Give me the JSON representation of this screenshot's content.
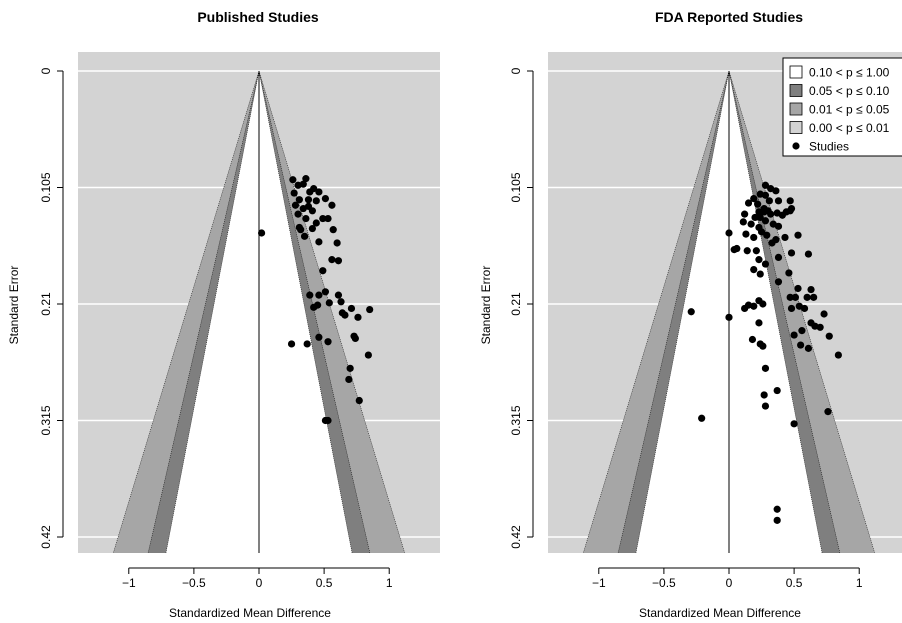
{
  "colors": {
    "panel_background": "#d3d3d3",
    "grid": "#ffffff",
    "region_p_010_100": "#ffffff",
    "region_p_005_010": "#7f7f7f",
    "region_p_001_005": "#a6a6a6",
    "region_p_000_001": "#d3d3d3",
    "points": "#000000"
  },
  "legend": {
    "items": [
      {
        "label": "0.10 < p ≤ 1.00",
        "kind": "box",
        "color": "#ffffff"
      },
      {
        "label": "0.05 < p ≤ 0.10",
        "kind": "box",
        "color": "#7f7f7f"
      },
      {
        "label": "0.01 < p ≤ 0.05",
        "kind": "box",
        "color": "#a6a6a6"
      },
      {
        "label": "0.00 < p ≤ 0.01",
        "kind": "box",
        "color": "#d3d3d3"
      },
      {
        "label": "Studies",
        "kind": "point",
        "color": "#000000"
      }
    ]
  },
  "chart_data": [
    {
      "type": "scatter",
      "subtype": "contour-enhanced funnel plot",
      "title": "Published Studies",
      "xlabel": "Standardized Mean Difference",
      "ylabel": "Standard Error",
      "xlim": [
        -1.39,
        1.39
      ],
      "ylim": [
        0.42,
        0
      ],
      "y_reversed": true,
      "grid": "horizontal",
      "x_ticks": [
        -1,
        -0.5,
        0,
        0.5,
        1
      ],
      "x_tick_labels": [
        "−1",
        "−0.5",
        "0",
        "0.5",
        "1"
      ],
      "y_ticks": [
        0,
        0.105,
        0.21,
        0.315,
        0.42
      ],
      "y_tick_labels": [
        "0",
        "0.105",
        "0.21",
        "0.315",
        "0.42"
      ],
      "reference_line_x": 0,
      "contour_multipliers": [
        1.645,
        1.96,
        2.576
      ],
      "legend_shown": false,
      "points": [
        [
          0.26,
          0.098
        ],
        [
          0.36,
          0.097
        ],
        [
          0.3,
          0.103
        ],
        [
          0.34,
          0.102
        ],
        [
          0.27,
          0.11
        ],
        [
          0.39,
          0.109
        ],
        [
          0.42,
          0.106
        ],
        [
          0.46,
          0.109
        ],
        [
          0.31,
          0.116
        ],
        [
          0.38,
          0.116
        ],
        [
          0.44,
          0.117
        ],
        [
          0.51,
          0.115
        ],
        [
          0.56,
          0.121
        ],
        [
          0.28,
          0.121
        ],
        [
          0.34,
          0.124
        ],
        [
          0.41,
          0.126
        ],
        [
          0.38,
          0.122
        ],
        [
          0.3,
          0.129
        ],
        [
          0.36,
          0.133
        ],
        [
          0.49,
          0.133
        ],
        [
          0.53,
          0.133
        ],
        [
          0.44,
          0.137
        ],
        [
          0.31,
          0.141
        ],
        [
          0.41,
          0.142
        ],
        [
          0.32,
          0.143
        ],
        [
          0.57,
          0.143
        ],
        [
          0.35,
          0.149
        ],
        [
          0.46,
          0.154
        ],
        [
          0.6,
          0.155
        ],
        [
          0.49,
          0.18
        ],
        [
          0.56,
          0.17
        ],
        [
          0.61,
          0.171
        ],
        [
          0.39,
          0.202
        ],
        [
          0.46,
          0.202
        ],
        [
          0.51,
          0.199
        ],
        [
          0.61,
          0.202
        ],
        [
          0.45,
          0.211
        ],
        [
          0.54,
          0.209
        ],
        [
          0.63,
          0.208
        ],
        [
          0.42,
          0.213
        ],
        [
          0.71,
          0.214
        ],
        [
          0.64,
          0.218
        ],
        [
          0.66,
          0.22
        ],
        [
          0.76,
          0.222
        ],
        [
          0.85,
          0.215
        ],
        [
          0.46,
          0.24
        ],
        [
          0.53,
          0.244
        ],
        [
          0.73,
          0.239
        ],
        [
          0.74,
          0.241
        ],
        [
          0.25,
          0.246
        ],
        [
          0.37,
          0.246
        ],
        [
          0.84,
          0.256
        ],
        [
          0.7,
          0.268
        ],
        [
          0.69,
          0.278
        ],
        [
          0.77,
          0.297
        ],
        [
          0.51,
          0.315
        ],
        [
          0.53,
          0.315
        ],
        [
          0.02,
          0.146
        ]
      ]
    },
    {
      "type": "scatter",
      "subtype": "contour-enhanced funnel plot",
      "title": "FDA Reported Studies",
      "xlabel": "Standardized Mean Difference",
      "ylabel": "Standard Error",
      "xlim": [
        -1.39,
        1.39
      ],
      "ylim": [
        0.42,
        0
      ],
      "y_reversed": true,
      "grid": "horizontal",
      "x_ticks": [
        -1,
        -0.5,
        0,
        0.5,
        1
      ],
      "x_tick_labels": [
        "−1",
        "−0.5",
        "0",
        "0.5",
        "1"
      ],
      "y_ticks": [
        0,
        0.105,
        0.21,
        0.315,
        0.42
      ],
      "y_tick_labels": [
        "0",
        "0.105",
        "0.21",
        "0.315",
        "0.42"
      ],
      "reference_line_x": 0,
      "contour_multipliers": [
        1.645,
        1.96,
        2.576
      ],
      "legend_shown": true,
      "legend_position": "top-right",
      "points": [
        [
          0.28,
          0.103
        ],
        [
          0.32,
          0.106
        ],
        [
          0.36,
          0.108
        ],
        [
          0.24,
          0.111
        ],
        [
          0.28,
          0.112
        ],
        [
          0.19,
          0.115
        ],
        [
          0.31,
          0.117
        ],
        [
          0.38,
          0.117
        ],
        [
          0.47,
          0.117
        ],
        [
          0.15,
          0.119
        ],
        [
          0.22,
          0.12
        ],
        [
          0.27,
          0.124
        ],
        [
          0.3,
          0.126
        ],
        [
          0.23,
          0.127
        ],
        [
          0.27,
          0.127
        ],
        [
          0.32,
          0.129
        ],
        [
          0.41,
          0.13
        ],
        [
          0.48,
          0.124
        ],
        [
          0.12,
          0.129
        ],
        [
          0.2,
          0.132
        ],
        [
          0.24,
          0.132
        ],
        [
          0.28,
          0.135
        ],
        [
          0.37,
          0.128
        ],
        [
          0.44,
          0.127
        ],
        [
          0.47,
          0.126
        ],
        [
          0.11,
          0.136
        ],
        [
          0.17,
          0.138
        ],
        [
          0.23,
          0.141
        ],
        [
          0.34,
          0.138
        ],
        [
          0.38,
          0.14
        ],
        [
          0.25,
          0.145
        ],
        [
          0.29,
          0.148
        ],
        [
          0.0,
          0.146
        ],
        [
          0.13,
          0.147
        ],
        [
          0.19,
          0.15
        ],
        [
          0.33,
          0.155
        ],
        [
          0.36,
          0.152
        ],
        [
          0.43,
          0.15
        ],
        [
          0.53,
          0.148
        ],
        [
          0.04,
          0.161
        ],
        [
          0.06,
          0.16
        ],
        [
          0.14,
          0.162
        ],
        [
          0.21,
          0.162
        ],
        [
          0.23,
          0.17
        ],
        [
          0.28,
          0.174
        ],
        [
          0.38,
          0.168
        ],
        [
          0.48,
          0.164
        ],
        [
          0.61,
          0.165
        ],
        [
          0.19,
          0.179
        ],
        [
          0.24,
          0.183
        ],
        [
          0.46,
          0.182
        ],
        [
          0.38,
          0.19
        ],
        [
          0.53,
          0.196
        ],
        [
          0.63,
          0.197
        ],
        [
          0.6,
          0.204
        ],
        [
          0.65,
          0.204
        ],
        [
          0.23,
          0.207
        ],
        [
          0.26,
          0.21
        ],
        [
          0.15,
          0.211
        ],
        [
          0.19,
          0.212
        ],
        [
          0.12,
          0.214
        ],
        [
          0.47,
          0.204
        ],
        [
          0.51,
          0.204
        ],
        [
          0.48,
          0.214
        ],
        [
          0.54,
          0.212
        ],
        [
          0.58,
          0.214
        ],
        [
          0.73,
          0.219
        ],
        [
          0.63,
          0.227
        ],
        [
          0.66,
          0.23
        ],
        [
          0.7,
          0.231
        ],
        [
          0.56,
          0.234
        ],
        [
          0.5,
          0.238
        ],
        [
          0.77,
          0.239
        ],
        [
          0.23,
          0.227
        ],
        [
          0.24,
          0.246
        ],
        [
          0.18,
          0.242
        ],
        [
          0.26,
          0.248
        ],
        [
          0.55,
          0.247
        ],
        [
          0.61,
          0.25
        ],
        [
          0.84,
          0.256
        ],
        [
          0.28,
          0.268
        ],
        [
          0.27,
          0.292
        ],
        [
          0.37,
          0.288
        ],
        [
          0.28,
          0.302
        ],
        [
          -0.29,
          0.217
        ],
        [
          0.0,
          0.222
        ],
        [
          0.5,
          0.318
        ],
        [
          0.76,
          0.307
        ],
        [
          -0.21,
          0.313
        ],
        [
          0.37,
          0.395
        ],
        [
          0.37,
          0.405
        ]
      ]
    }
  ]
}
